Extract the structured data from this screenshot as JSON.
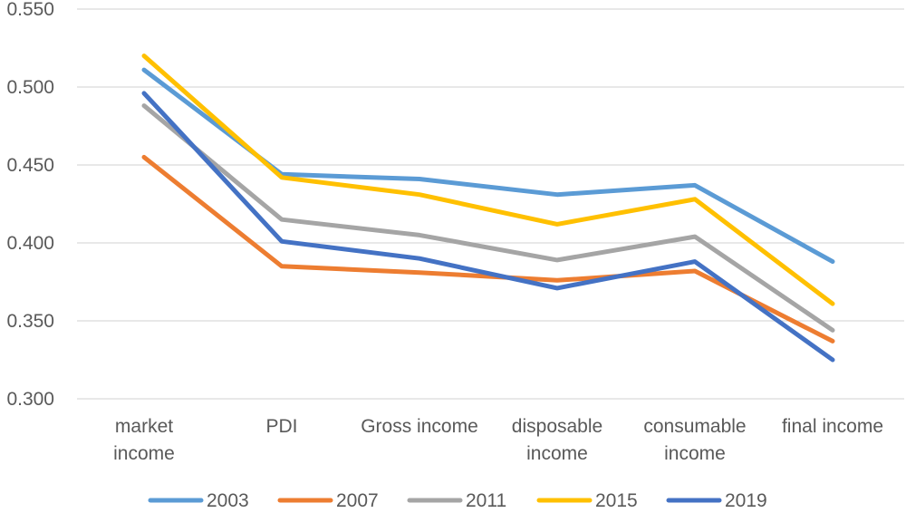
{
  "chart_data": {
    "type": "line",
    "title": "",
    "xlabel": "",
    "ylabel": "",
    "ylim": [
      0.3,
      0.55
    ],
    "yticks": [
      "0.300",
      "0.350",
      "0.400",
      "0.450",
      "0.500",
      "0.550"
    ],
    "ytick_values": [
      0.3,
      0.35,
      0.4,
      0.45,
      0.5,
      0.55
    ],
    "grid": true,
    "legend_position": "bottom",
    "categories": [
      [
        "market",
        "income"
      ],
      [
        "PDI"
      ],
      [
        "Gross income"
      ],
      [
        "disposable",
        "income"
      ],
      [
        "consumable",
        "income"
      ],
      [
        "final income"
      ]
    ],
    "series": [
      {
        "name": "2003",
        "color": "#5B9BD5",
        "values": [
          0.511,
          0.444,
          0.441,
          0.431,
          0.437,
          0.388
        ]
      },
      {
        "name": "2007",
        "color": "#ED7D31",
        "values": [
          0.455,
          0.385,
          0.381,
          0.376,
          0.382,
          0.337
        ]
      },
      {
        "name": "2011",
        "color": "#A5A5A5",
        "values": [
          0.488,
          0.415,
          0.405,
          0.389,
          0.404,
          0.344
        ]
      },
      {
        "name": "2015",
        "color": "#FFC000",
        "values": [
          0.52,
          0.442,
          0.431,
          0.412,
          0.428,
          0.361
        ]
      },
      {
        "name": "2019",
        "color": "#4472C4",
        "values": [
          0.496,
          0.401,
          0.39,
          0.371,
          0.388,
          0.325
        ]
      }
    ]
  }
}
